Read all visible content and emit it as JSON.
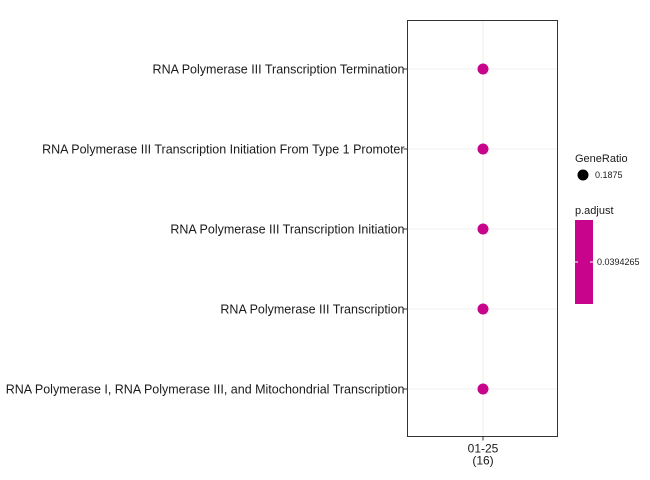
{
  "chart_data": {
    "type": "scatter",
    "x_categories": [
      {
        "label": "01-25",
        "count": "(16)"
      }
    ],
    "y_categories": [
      "RNA Polymerase III Transcription Termination",
      "RNA Polymerase III Transcription Initiation From Type 1 Promoter",
      "RNA Polymerase III Transcription Initiation",
      "RNA Polymerase III Transcription",
      "RNA Polymerase I, RNA Polymerase III, and Mitochondrial Transcription"
    ],
    "points": [
      {
        "x": "01-25",
        "y": "RNA Polymerase III Transcription Termination",
        "GeneRatio": 0.1875,
        "p_adjust": 0.0394265
      },
      {
        "x": "01-25",
        "y": "RNA Polymerase III Transcription Initiation From Type 1 Promoter",
        "GeneRatio": 0.1875,
        "p_adjust": 0.0394265
      },
      {
        "x": "01-25",
        "y": "RNA Polymerase III Transcription Initiation",
        "GeneRatio": 0.1875,
        "p_adjust": 0.0394265
      },
      {
        "x": "01-25",
        "y": "RNA Polymerase III Transcription",
        "GeneRatio": 0.1875,
        "p_adjust": 0.0394265
      },
      {
        "x": "01-25",
        "y": "RNA Polymerase I, RNA Polymerase III, and Mitochondrial Transcription",
        "GeneRatio": 0.1875,
        "p_adjust": 0.0394265
      }
    ],
    "size_legend": {
      "title": "GeneRatio",
      "entries": [
        "0.1875"
      ]
    },
    "color_legend": {
      "title": "p.adjust",
      "entries": [
        "0.0394265"
      ],
      "color": "#C8048C"
    },
    "point_color": "#C8048C",
    "grid": true,
    "legend_position": "right"
  }
}
